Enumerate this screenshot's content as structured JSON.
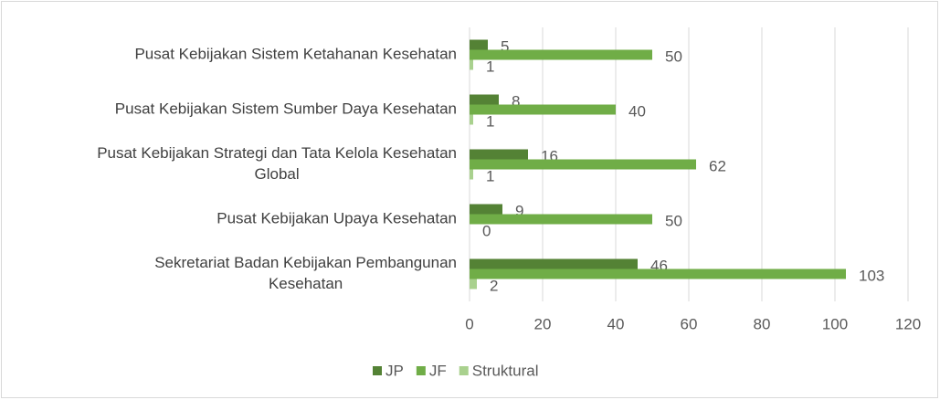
{
  "chart_data": {
    "type": "hbar",
    "categories": [
      "Pusat Kebijakan Sistem Ketahanan Kesehatan",
      "Pusat Kebijakan Sistem Sumber Daya Kesehatan",
      "Pusat Kebijakan Strategi dan Tata Kelola Kesehatan\nGlobal",
      "Pusat Kebijakan Upaya Kesehatan",
      "Sekretariat Badan Kebijakan Pembangunan\nKesehatan"
    ],
    "series": [
      {
        "name": "JP",
        "color": "#548235",
        "values": [
          5,
          8,
          16,
          9,
          46
        ]
      },
      {
        "name": "JF",
        "color": "#70ad47",
        "values": [
          50,
          40,
          62,
          50,
          103
        ]
      },
      {
        "name": "Struktural",
        "color": "#a9d18e",
        "values": [
          1,
          1,
          1,
          0,
          2
        ]
      }
    ],
    "xlim": [
      0,
      120
    ],
    "xticks": [
      0,
      20,
      40,
      60,
      80,
      100,
      120
    ],
    "grid": true,
    "legend": "bottom"
  }
}
